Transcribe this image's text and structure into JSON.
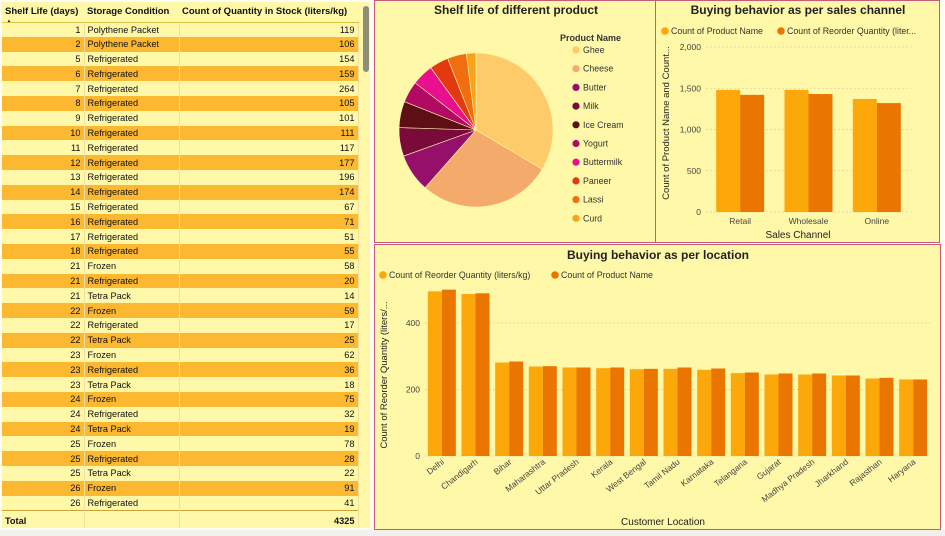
{
  "table": {
    "headers": [
      "Shelf Life (days)",
      "Storage Condition",
      "Count of Quantity in Stock (liters/kg)"
    ],
    "rows": [
      [
        1,
        "Polythene Packet",
        119
      ],
      [
        2,
        "Polythene Packet",
        106
      ],
      [
        5,
        "Refrigerated",
        154
      ],
      [
        6,
        "Refrigerated",
        159
      ],
      [
        7,
        "Refrigerated",
        264
      ],
      [
        8,
        "Refrigerated",
        105
      ],
      [
        9,
        "Refrigerated",
        101
      ],
      [
        10,
        "Refrigerated",
        111
      ],
      [
        11,
        "Refrigerated",
        117
      ],
      [
        12,
        "Refrigerated",
        177
      ],
      [
        13,
        "Refrigerated",
        196
      ],
      [
        14,
        "Refrigerated",
        174
      ],
      [
        15,
        "Refrigerated",
        67
      ],
      [
        16,
        "Refrigerated",
        71
      ],
      [
        17,
        "Refrigerated",
        51
      ],
      [
        18,
        "Refrigerated",
        55
      ],
      [
        21,
        "Frozen",
        58
      ],
      [
        21,
        "Refrigerated",
        20
      ],
      [
        21,
        "Tetra Pack",
        14
      ],
      [
        22,
        "Frozen",
        59
      ],
      [
        22,
        "Refrigerated",
        17
      ],
      [
        22,
        "Tetra Pack",
        25
      ],
      [
        23,
        "Frozen",
        62
      ],
      [
        23,
        "Refrigerated",
        36
      ],
      [
        23,
        "Tetra Pack",
        18
      ],
      [
        24,
        "Frozen",
        75
      ],
      [
        24,
        "Refrigerated",
        32
      ],
      [
        24,
        "Tetra Pack",
        19
      ],
      [
        25,
        "Frozen",
        78
      ],
      [
        25,
        "Refrigerated",
        28
      ],
      [
        25,
        "Tetra Pack",
        22
      ],
      [
        26,
        "Frozen",
        91
      ],
      [
        26,
        "Refrigerated",
        41
      ]
    ],
    "total_label": "Total",
    "total_value": "4325"
  },
  "chart_data": [
    {
      "type": "pie",
      "title": "Shelf life of different product",
      "legend_title": "Product Name",
      "legend_position": "right",
      "slices": [
        {
          "label": "Ghee",
          "value": 33.5,
          "color": "#fecb6b"
        },
        {
          "label": "Cheese",
          "value": 28.0,
          "color": "#f3aa6a"
        },
        {
          "label": "Butter",
          "value": 8.0,
          "color": "#960f6a"
        },
        {
          "label": "Milk",
          "value": 6.0,
          "color": "#7a0a3a"
        },
        {
          "label": "Ice Cream",
          "value": 5.5,
          "color": "#5e0f14"
        },
        {
          "label": "Yogurt",
          "value": 4.5,
          "color": "#b20a64"
        },
        {
          "label": "Buttermilk",
          "value": 4.5,
          "color": "#e8108e"
        },
        {
          "label": "Paneer",
          "value": 4.0,
          "color": "#e2390f"
        },
        {
          "label": "Lassi",
          "value": 4.0,
          "color": "#f06d10"
        },
        {
          "label": "Curd",
          "value": 2.0,
          "color": "#f8a41b"
        }
      ]
    },
    {
      "type": "bar",
      "title": "Buying behavior as per sales channel",
      "xlabel": "Sales Channel",
      "ylabel": "Count of Product Name and Count...",
      "categories": [
        "Retail",
        "Wholesale",
        "Online"
      ],
      "series": [
        {
          "name": "Count of Product Name",
          "values": [
            1480,
            1480,
            1370
          ],
          "color": "#fca80a"
        },
        {
          "name": "Count of Reorder Quantity (liter...",
          "values": [
            1420,
            1430,
            1320
          ],
          "color": "#ea7500"
        }
      ],
      "ylim": [
        0,
        2000
      ],
      "yticks": [
        "0",
        "500",
        "1,000",
        "1,500",
        "2,000"
      ],
      "legend_position": "top-left",
      "grid": true
    },
    {
      "type": "bar",
      "title": "Buying behavior as per location",
      "xlabel": "Customer Location",
      "ylabel": "Count of Reorder Quantity (liters/...",
      "categories": [
        "Delhi",
        "Chandigarh",
        "Bihar",
        "Maharashtra",
        "Uttar Pradesh",
        "Kerala",
        "West Bengal",
        "Tamil Nadu",
        "Karnataka",
        "Telangana",
        "Gujarat",
        "Madhya Pradesh",
        "Jharkhand",
        "Rajasthan",
        "Haryana"
      ],
      "series": [
        {
          "name": "Count of Reorder Quantity (liters/kg)",
          "values": [
            495,
            487,
            281,
            269,
            266,
            264,
            261,
            262,
            259,
            249,
            245,
            245,
            242,
            233,
            230
          ],
          "color": "#fca80a"
        },
        {
          "name": "Count of Product Name",
          "values": [
            500,
            489,
            284,
            270,
            266,
            266,
            262,
            266,
            263,
            251,
            248,
            248,
            242,
            235,
            230
          ],
          "color": "#ea7500"
        }
      ],
      "ylim": [
        0,
        520
      ],
      "yticks": [
        "0",
        "200",
        "400"
      ],
      "legend_position": "top-left",
      "grid": true
    }
  ]
}
